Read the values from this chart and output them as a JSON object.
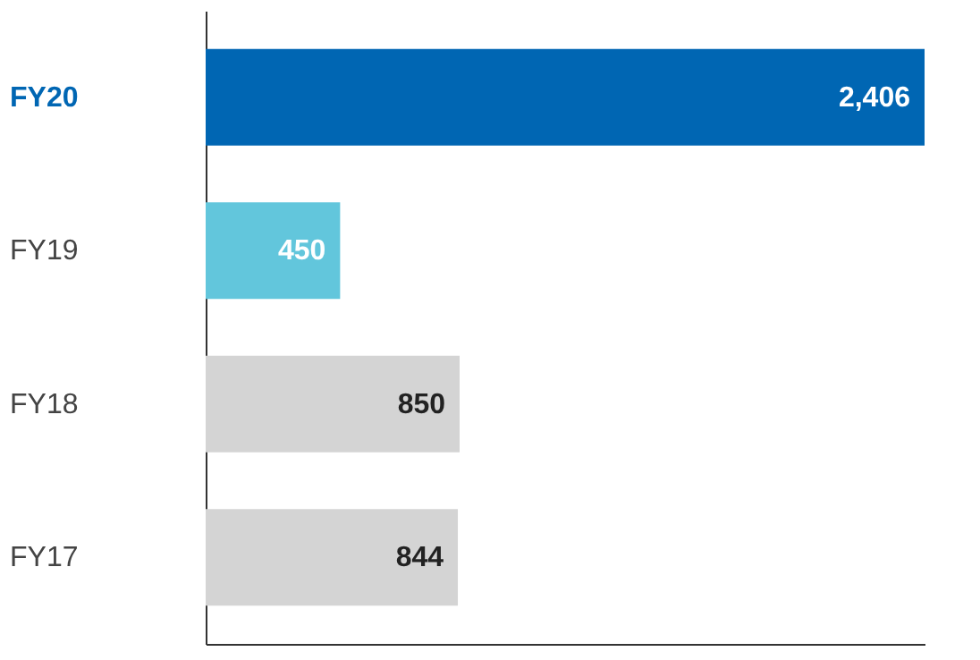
{
  "chart_data": {
    "type": "bar",
    "orientation": "horizontal",
    "categories": [
      "FY20",
      "FY19",
      "FY18",
      "FY17"
    ],
    "values": [
      2406,
      450,
      850,
      844
    ],
    "colors": [
      "#0066b3",
      "#62c6dc",
      "#d4d4d4",
      "#d4d4d4"
    ],
    "value_labels": [
      "2,406",
      "450",
      "850",
      "844"
    ]
  }
}
